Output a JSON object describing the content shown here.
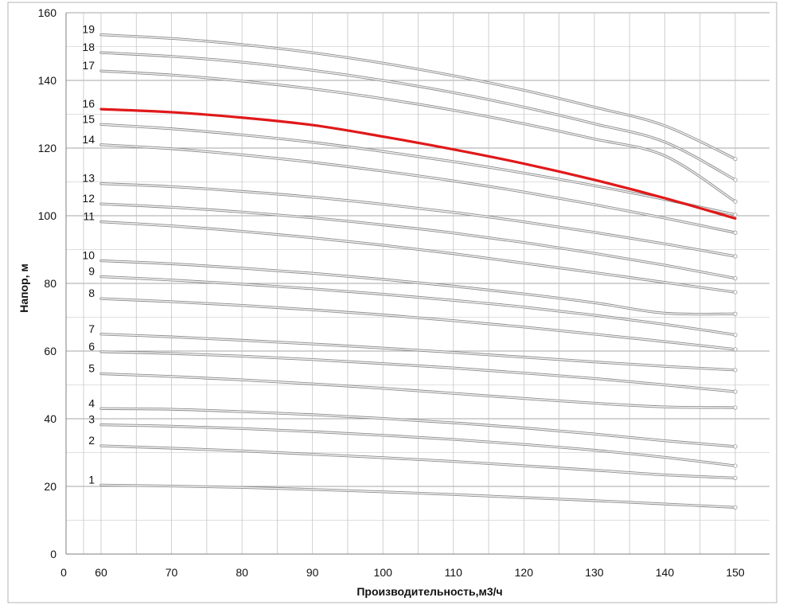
{
  "chart_data": {
    "type": "line",
    "title": "",
    "xlabel": "Производительность,м3/ч",
    "ylabel": "Напор, м",
    "xlim": [
      0,
      150
    ],
    "ylim": [
      0,
      160
    ],
    "x_ticks": [
      0,
      60,
      70,
      80,
      90,
      100,
      110,
      120,
      130,
      140,
      150
    ],
    "y_ticks": [
      0,
      20,
      40,
      60,
      80,
      100,
      120,
      140,
      160
    ],
    "x_tick_labels": [
      "0",
      "60",
      "70",
      "80",
      "90",
      "100",
      "110",
      "120",
      "130",
      "140",
      "150"
    ],
    "y_tick_labels": [
      "0",
      "20",
      "40",
      "60",
      "80",
      "100",
      "120",
      "140",
      "160"
    ],
    "grid": true,
    "legend": "none",
    "x": [
      60,
      70,
      80,
      90,
      100,
      110,
      120,
      130,
      140,
      150
    ],
    "highlight_color": "#e0191a",
    "series": [
      {
        "name": "1",
        "values": [
          20.4,
          20.1,
          19.7,
          19.1,
          18.4,
          17.6,
          16.7,
          15.8,
          14.8,
          13.8
        ],
        "color": "#bfbfbf"
      },
      {
        "name": "2",
        "values": [
          32.0,
          31.3,
          30.5,
          29.5,
          28.5,
          27.4,
          26.1,
          24.8,
          23.4,
          22.5
        ],
        "color": "#9a9a9a"
      },
      {
        "name": "3",
        "values": [
          38.2,
          37.8,
          37.1,
          36.2,
          35.1,
          33.9,
          32.4,
          30.7,
          28.6,
          26.1
        ],
        "color": "#9a9a9a"
      },
      {
        "name": "4",
        "values": [
          43.0,
          42.8,
          42.1,
          41.2,
          40.1,
          38.8,
          37.3,
          35.5,
          33.5,
          31.8
        ],
        "color": "#b0b0b0"
      },
      {
        "name": "5",
        "values": [
          53.3,
          52.5,
          51.5,
          50.3,
          49.0,
          47.5,
          46.0,
          44.6,
          43.5,
          43.3
        ],
        "color": "#9a9a9a"
      },
      {
        "name": "6",
        "values": [
          59.8,
          59.3,
          58.5,
          57.5,
          56.3,
          55.0,
          53.5,
          51.9,
          50.0,
          48.0
        ],
        "color": "#9a9a9a"
      },
      {
        "name": "7",
        "values": [
          65.0,
          64.2,
          63.2,
          62.1,
          60.9,
          59.6,
          58.2,
          56.8,
          55.5,
          54.4
        ],
        "color": "#9a9a9a"
      },
      {
        "name": "8",
        "values": [
          75.5,
          74.6,
          73.5,
          72.2,
          70.7,
          69.0,
          67.1,
          65.0,
          62.8,
          60.5
        ],
        "color": "#9a9a9a"
      },
      {
        "name": "9",
        "values": [
          82.0,
          81.0,
          79.8,
          78.4,
          76.8,
          75.0,
          73.0,
          70.6,
          67.9,
          64.8
        ],
        "color": "#9a9a9a"
      },
      {
        "name": "10",
        "values": [
          86.7,
          85.8,
          84.5,
          83.0,
          81.2,
          79.2,
          76.9,
          74.3,
          71.2,
          71.0
        ],
        "color": "#9a9a9a"
      },
      {
        "name": "11",
        "values": [
          98.2,
          97.0,
          95.4,
          93.5,
          91.3,
          88.8,
          86.0,
          83.2,
          80.3,
          77.4
        ],
        "color": "#9a9a9a"
      },
      {
        "name": "12",
        "values": [
          103.5,
          102.5,
          101.1,
          99.4,
          97.3,
          94.9,
          92.1,
          88.9,
          85.4,
          81.5
        ],
        "color": "#9a9a9a"
      },
      {
        "name": "13",
        "values": [
          109.5,
          108.6,
          107.2,
          105.5,
          103.4,
          101.0,
          98.2,
          95.1,
          91.7,
          88.0
        ],
        "color": "#9a9a9a"
      },
      {
        "name": "14",
        "values": [
          121.0,
          119.8,
          118.0,
          115.8,
          113.2,
          110.3,
          107.0,
          103.3,
          99.3,
          95.0
        ],
        "color": "#c8c8c8"
      },
      {
        "name": "15",
        "values": [
          127.0,
          125.7,
          123.9,
          121.7,
          119.0,
          116.0,
          112.6,
          108.9,
          104.8,
          100.3
        ],
        "color": "#9a9a9a"
      },
      {
        "name": "16",
        "values": [
          131.5,
          130.6,
          129.0,
          126.8,
          123.4,
          119.6,
          115.4,
          110.6,
          105.2,
          99.2
        ],
        "color": "#e0191a",
        "highlight": true
      },
      {
        "name": "17",
        "values": [
          142.8,
          141.6,
          139.8,
          137.5,
          134.6,
          131.2,
          127.2,
          122.7,
          117.7,
          104.2
        ],
        "color": "#9a9a9a"
      },
      {
        "name": "18",
        "values": [
          148.2,
          147.1,
          145.4,
          143.0,
          140.0,
          136.4,
          132.1,
          127.2,
          121.8,
          110.6
        ],
        "color": "#9a9a9a"
      },
      {
        "name": "19",
        "values": [
          153.5,
          152.4,
          150.6,
          148.2,
          145.1,
          141.4,
          137.1,
          132.1,
          126.6,
          116.8
        ],
        "color": "#9a9a9a"
      }
    ]
  }
}
